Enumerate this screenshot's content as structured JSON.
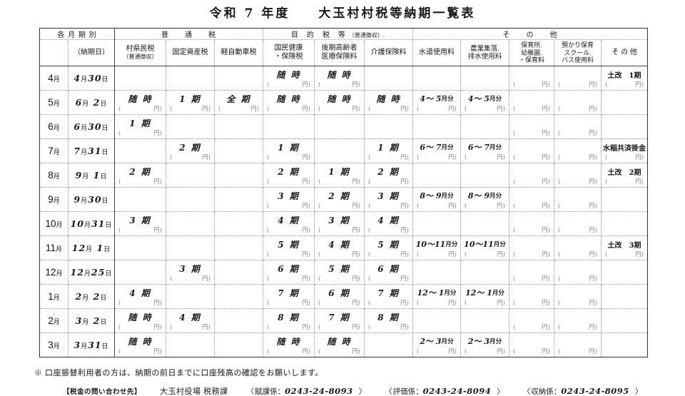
{
  "title": "令和 7 年度　　大玉村村税等納期一覧表",
  "table": {
    "yen_open": "(",
    "yen_close": "円)",
    "groups": [
      {
        "t": "各 月 期 別"
      },
      {
        "t": "普　　通　　税"
      },
      {
        "t": "目　的　税　等",
        "s": "　（普通徴収）."
      },
      {
        "t": "そ　　の　　他"
      }
    ],
    "columns": [
      {
        "t": ""
      },
      {
        "t": "（納期日）"
      },
      {
        "t": "村県民税",
        "s": "（普通徴収）"
      },
      {
        "t": "固定資産税"
      },
      {
        "t": "軽自動車税"
      },
      {
        "t": "国民健康\n・保険税"
      },
      {
        "t": "後期高齢者\n医療保険料"
      },
      {
        "t": "介護保険料"
      },
      {
        "t": "水道使用料"
      },
      {
        "t": "農業集落.\n排水使用料"
      },
      {
        "t": "保育所.\n幼稚園.\n・保育料"
      },
      {
        "t": "預かり保育\nスクール.\nバス使用料"
      },
      {
        "t": "そ の 他"
      }
    ],
    "rows": [
      {
        "month": "4月",
        "due": "4月30日",
        "cells": [
          null,
          null,
          null,
          {
            "l": "随 時",
            "y": true
          },
          {
            "l": "随 時",
            "y": true
          },
          null,
          null,
          null,
          {
            "y": true
          },
          {
            "y": true
          },
          {
            "l": "土改　1期",
            "y": true
          }
        ]
      },
      {
        "month": "5月",
        "due": "6月 2日",
        "cells": [
          {
            "l": "随 時",
            "y": true
          },
          {
            "l": "1 期",
            "y": true
          },
          {
            "l": "全 期",
            "y": true
          },
          {
            "l": "随 時",
            "y": true
          },
          {
            "l": "随 時",
            "y": true
          },
          {
            "l": "随 時",
            "y": true
          },
          {
            "l": "4～ 5月分",
            "y": true
          },
          {
            "l": "4～ 5月分",
            "y": true
          },
          {
            "y": true
          },
          {
            "y": true
          },
          null
        ]
      },
      {
        "month": "6月",
        "due": "6月30日",
        "cells": [
          {
            "l": "1 期",
            "y": true
          },
          null,
          null,
          null,
          null,
          null,
          null,
          null,
          {
            "y": true
          },
          {
            "y": true
          },
          null
        ]
      },
      {
        "month": "7月",
        "due": "7月31日",
        "cells": [
          null,
          {
            "l": "2 期",
            "y": true
          },
          null,
          {
            "l": "1 期",
            "y": true
          },
          null,
          {
            "l": "1 期",
            "y": true
          },
          {
            "l": "6～ 7月分",
            "y": true
          },
          {
            "l": "6～ 7月分",
            "y": true
          },
          {
            "y": true
          },
          {
            "y": true
          },
          {
            "l": "水稲共済掛金",
            "y": true
          }
        ]
      },
      {
        "month": "8月",
        "due": "9月 1日",
        "cells": [
          {
            "l": "2 期",
            "y": true
          },
          null,
          null,
          {
            "l": "2 期",
            "y": true
          },
          {
            "l": "1 期",
            "y": true
          },
          {
            "l": "2 期",
            "y": true
          },
          null,
          null,
          {
            "y": true
          },
          {
            "y": true
          },
          {
            "l": "土改　2期",
            "y": true
          }
        ]
      },
      {
        "month": "9月",
        "due": "9月30日",
        "cells": [
          null,
          null,
          null,
          {
            "l": "3 期",
            "y": true
          },
          {
            "l": "2 期",
            "y": true
          },
          {
            "l": "3 期",
            "y": true
          },
          {
            "l": "8～ 9月分",
            "y": true
          },
          {
            "l": "8～ 9月分",
            "y": true
          },
          {
            "y": true
          },
          {
            "y": true
          },
          null
        ]
      },
      {
        "month": "10月",
        "due": "10月31日",
        "cells": [
          {
            "l": "3 期",
            "y": true
          },
          null,
          null,
          {
            "l": "4 期",
            "y": true
          },
          {
            "l": "3 期",
            "y": true
          },
          {
            "l": "4 期",
            "y": true
          },
          null,
          null,
          {
            "y": true
          },
          {
            "y": true
          },
          null
        ]
      },
      {
        "month": "11月",
        "due": "12月 1日",
        "cells": [
          null,
          null,
          null,
          {
            "l": "5 期",
            "y": true
          },
          {
            "l": "4 期",
            "y": true
          },
          {
            "l": "5 期",
            "y": true
          },
          {
            "l": "10～11月分",
            "y": true
          },
          {
            "l": "10～11月分",
            "y": true
          },
          {
            "y": true
          },
          {
            "y": true
          },
          {
            "l": "土改　3期",
            "y": true
          }
        ]
      },
      {
        "month": "12月",
        "due": "12月25日",
        "cells": [
          null,
          {
            "l": "3 期",
            "y": true
          },
          null,
          {
            "l": "6 期",
            "y": true
          },
          {
            "l": "5 期",
            "y": true
          },
          {
            "l": "6 期",
            "y": true
          },
          null,
          null,
          {
            "y": true
          },
          {
            "y": true
          },
          null
        ]
      },
      {
        "month": "1月",
        "due": "2月 2日",
        "cells": [
          {
            "l": "4 期",
            "y": true
          },
          null,
          null,
          {
            "l": "7 期",
            "y": true
          },
          {
            "l": "6 期",
            "y": true
          },
          {
            "l": "7 期",
            "y": true
          },
          {
            "l": "12～ 1月分",
            "y": true
          },
          {
            "l": "12～ 1月分",
            "y": true
          },
          {
            "y": true
          },
          {
            "y": true
          },
          null
        ]
      },
      {
        "month": "2月",
        "due": "3月 2日",
        "cells": [
          {
            "l": "随 時",
            "y": true
          },
          {
            "l": "4 期",
            "y": true
          },
          null,
          {
            "l": "8 期",
            "y": true
          },
          {
            "l": "7 期",
            "y": true
          },
          {
            "l": "8 期",
            "y": true
          },
          null,
          null,
          {
            "y": true
          },
          {
            "y": true
          },
          null
        ]
      },
      {
        "month": "3月",
        "due": "3月31日",
        "cells": [
          {
            "l": "随 時",
            "y": true
          },
          null,
          null,
          {
            "l": "随 時",
            "y": true
          },
          {
            "l": "随 時",
            "y": true
          },
          null,
          {
            "l": "2～ 3月分",
            "y": true
          },
          {
            "l": "2～ 3月分",
            "y": true
          },
          {
            "y": true
          },
          {
            "y": true
          },
          null
        ]
      }
    ]
  },
  "footer": {
    "note": "※ 口座振替利用者の方は、納期の前日までに口座残高の確認をお願いします。",
    "contact_title": "【税金の問い合わせ先】",
    "office": "大玉村役場 税務課",
    "contact_sep": "：",
    "contacts": [
      {
        "label": "賦課係",
        "phone": "0243-24-8093"
      },
      {
        "label": "評価係",
        "phone": "0243-24-8094"
      },
      {
        "label": "収納係",
        "phone": "0243-24-8095"
      }
    ]
  }
}
